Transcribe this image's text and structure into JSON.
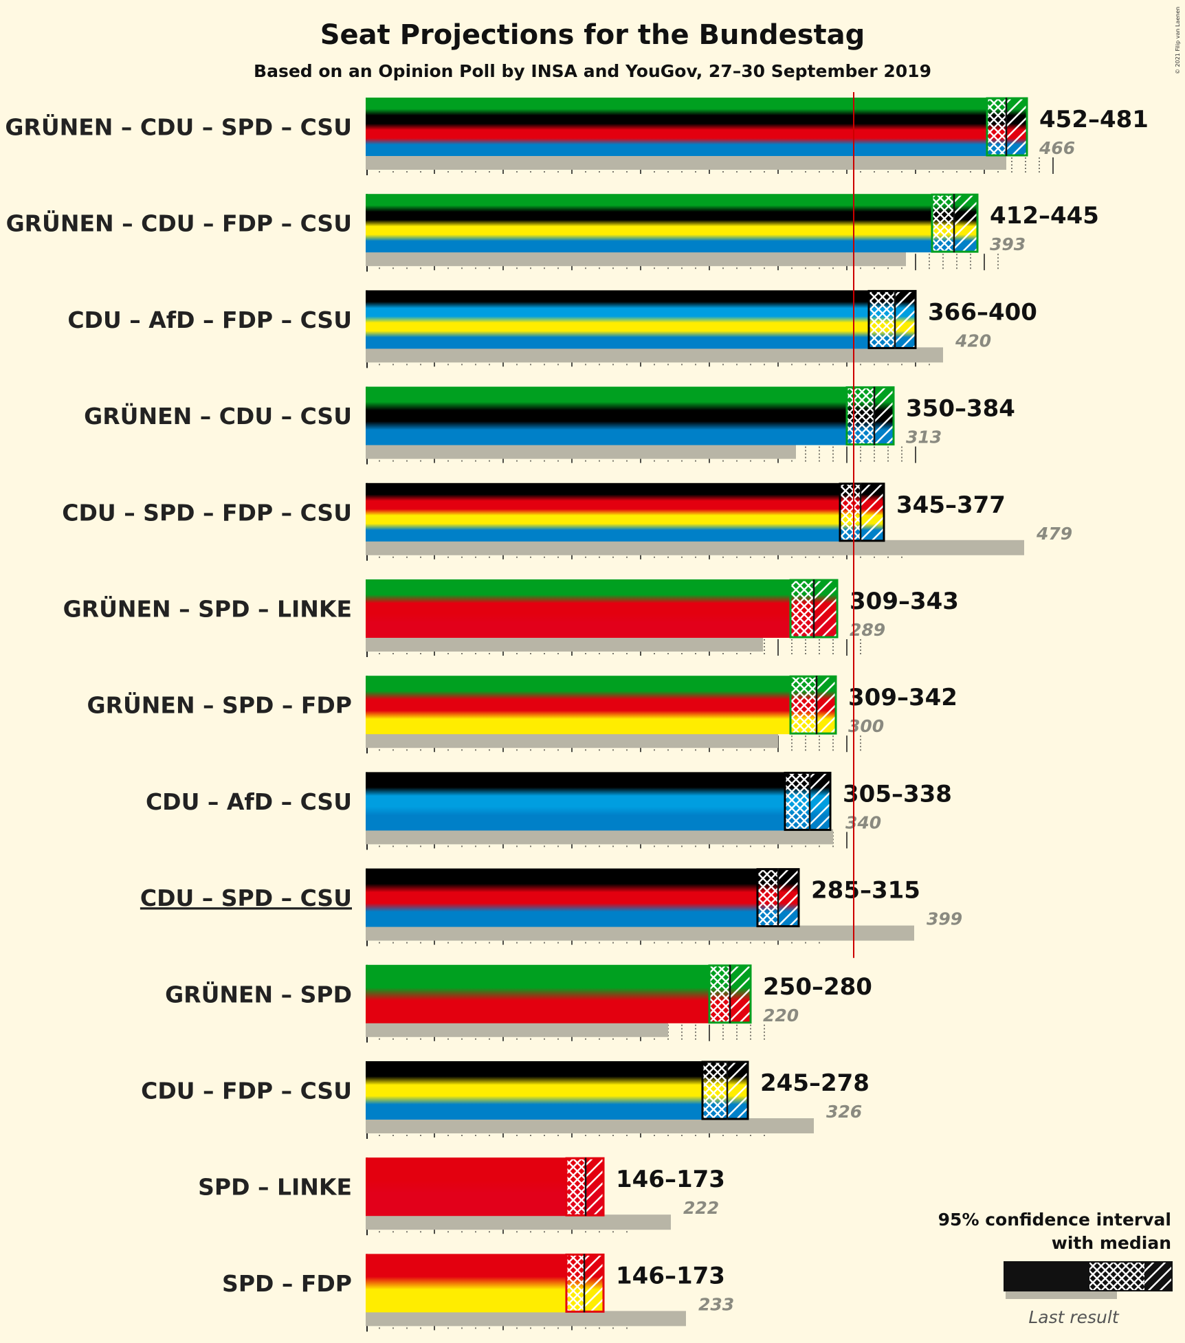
{
  "title": "Seat Projections for the Bundestag",
  "subtitle": "Based on an Opinion Poll by INSA and YouGov, 27–30 September 2019",
  "copyright": "© 2021 Filip van Laenen",
  "legend": {
    "line1": "95% confidence interval",
    "line2": "with median",
    "last_result": "Last result"
  },
  "colors": {
    "GRÜNEN": "#00A020",
    "CDU": "#000000",
    "SPD": "#E3000F",
    "CSU": "#0080C8",
    "FDP": "#FFED00",
    "AfD": "#009EE0",
    "LINKE": "#E2001A",
    "last": "#B8B5A6",
    "majority": "#CC0000",
    "background": "#FFF9E2"
  },
  "chart_data": {
    "type": "bar",
    "orientation": "horizontal",
    "majority_line": 355,
    "x_max": 500,
    "coalitions": [
      {
        "label": "GRÜNEN – CDU – SPD – CSU",
        "parties": [
          "GRÜNEN",
          "CDU",
          "SPD",
          "CSU"
        ],
        "low": 452,
        "median": 466,
        "high": 481,
        "range_text": "452–481",
        "last": 466,
        "last_text": "466",
        "underline": false
      },
      {
        "label": "GRÜNEN – CDU – FDP – CSU",
        "parties": [
          "GRÜNEN",
          "CDU",
          "FDP",
          "CSU"
        ],
        "low": 412,
        "median": 428,
        "high": 445,
        "range_text": "412–445",
        "last": 393,
        "last_text": "393",
        "underline": false
      },
      {
        "label": "CDU – AfD – FDP – CSU",
        "parties": [
          "CDU",
          "AfD",
          "FDP",
          "CSU"
        ],
        "low": 366,
        "median": 385,
        "high": 400,
        "range_text": "366–400",
        "last": 420,
        "last_text": "420",
        "underline": false
      },
      {
        "label": "GRÜNEN – CDU – CSU",
        "parties": [
          "GRÜNEN",
          "CDU",
          "CSU"
        ],
        "low": 350,
        "median": 370,
        "high": 384,
        "range_text": "350–384",
        "last": 313,
        "last_text": "313",
        "underline": false
      },
      {
        "label": "CDU – SPD – FDP – CSU",
        "parties": [
          "CDU",
          "SPD",
          "FDP",
          "CSU"
        ],
        "low": 345,
        "median": 360,
        "high": 377,
        "range_text": "345–377",
        "last": 479,
        "last_text": "479",
        "underline": false
      },
      {
        "label": "GRÜNEN – SPD – LINKE",
        "parties": [
          "GRÜNEN",
          "SPD",
          "LINKE"
        ],
        "low": 309,
        "median": 326,
        "high": 343,
        "range_text": "309–343",
        "last": 289,
        "last_text": "289",
        "underline": false
      },
      {
        "label": "GRÜNEN – SPD – FDP",
        "parties": [
          "GRÜNEN",
          "SPD",
          "FDP"
        ],
        "low": 309,
        "median": 328,
        "high": 342,
        "range_text": "309–342",
        "last": 300,
        "last_text": "300",
        "underline": false
      },
      {
        "label": "CDU – AfD – CSU",
        "parties": [
          "CDU",
          "AfD",
          "CSU"
        ],
        "low": 305,
        "median": 323,
        "high": 338,
        "range_text": "305–338",
        "last": 340,
        "last_text": "340",
        "underline": false
      },
      {
        "label": "CDU – SPD – CSU",
        "parties": [
          "CDU",
          "SPD",
          "CSU"
        ],
        "low": 285,
        "median": 300,
        "high": 315,
        "range_text": "285–315",
        "last": 399,
        "last_text": "399",
        "underline": true
      },
      {
        "label": "GRÜNEN – SPD",
        "parties": [
          "GRÜNEN",
          "SPD"
        ],
        "low": 250,
        "median": 265,
        "high": 280,
        "range_text": "250–280",
        "last": 220,
        "last_text": "220",
        "underline": false
      },
      {
        "label": "CDU – FDP – CSU",
        "parties": [
          "CDU",
          "FDP",
          "CSU"
        ],
        "low": 245,
        "median": 263,
        "high": 278,
        "range_text": "245–278",
        "last": 326,
        "last_text": "326",
        "underline": false
      },
      {
        "label": "SPD – LINKE",
        "parties": [
          "SPD",
          "LINKE"
        ],
        "low": 146,
        "median": 160,
        "high": 173,
        "range_text": "146–173",
        "last": 222,
        "last_text": "222",
        "underline": false
      },
      {
        "label": "SPD – FDP",
        "parties": [
          "SPD",
          "FDP"
        ],
        "low": 146,
        "median": 159,
        "high": 173,
        "range_text": "146–173",
        "last": 233,
        "last_text": "233",
        "underline": false
      }
    ]
  }
}
